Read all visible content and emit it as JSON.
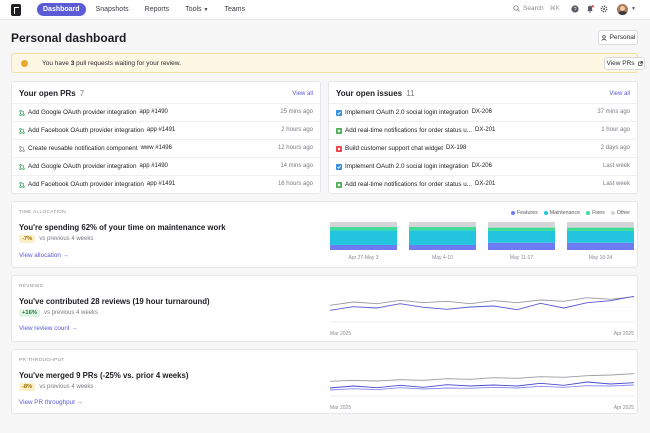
{
  "nav": {
    "tabs": [
      {
        "label": "Dashboard",
        "active": true
      },
      {
        "label": "Snapshots"
      },
      {
        "label": "Reports"
      },
      {
        "label": "Tools",
        "has_menu": true
      },
      {
        "label": "Teams"
      }
    ],
    "search_label": "Search",
    "search_shortcut": "⌘K"
  },
  "page": {
    "title": "Personal dashboard",
    "scope_button": "Personal"
  },
  "banner": {
    "prefix": "You have ",
    "count": "3",
    "suffix": " pull requests waiting for your review.",
    "button": "View PRs"
  },
  "prs": {
    "title": "Your open PRs",
    "count": "7",
    "view_all": "View all",
    "items": [
      {
        "title": "Add Google OAuth provider integration",
        "meta": "app #1490",
        "time": "25 mins ago",
        "status": "open"
      },
      {
        "title": "Add Facebook OAuth provider integration",
        "meta": "app #1491",
        "time": "2 hours ago",
        "status": "open"
      },
      {
        "title": "Create reusable notification component",
        "meta": "www #1496",
        "time": "12 hours ago",
        "status": "draft"
      },
      {
        "title": "Add Google OAuth provider integration",
        "meta": "app #1490",
        "time": "14 mins ago",
        "status": "open"
      },
      {
        "title": "Add Facebook OAuth provider integration",
        "meta": "app #1491",
        "time": "16 hours ago",
        "status": "open"
      }
    ]
  },
  "issues": {
    "title": "Your open issues",
    "count": "11",
    "view_all": "View all",
    "items": [
      {
        "title": "Implement OAuth 2.0 social login integration",
        "meta": "DX-206",
        "time": "37 mins ago",
        "kind": "task"
      },
      {
        "title": "Add real-time notifications for order status u...",
        "meta": "DX-201",
        "time": "1 hour ago",
        "kind": "story"
      },
      {
        "title": "Build customer support chat widget",
        "meta": "DX-198",
        "time": "2 days ago",
        "kind": "bug"
      },
      {
        "title": "Implement OAuth 2.0 social login integration",
        "meta": "DX-206",
        "time": "Last week",
        "kind": "task"
      },
      {
        "title": "Add real-time notifications for order status u...",
        "meta": "DX-201",
        "time": "Last week",
        "kind": "story"
      }
    ]
  },
  "colors": {
    "accent": "#5b5bd6",
    "features": "#6f7bf2",
    "maintenance": "#22c5dd",
    "fixes": "#3ddc97",
    "other": "#d4d4d9",
    "task": "#3b8fe0",
    "story": "#4caf50",
    "bug": "#e5484d",
    "pr_open": "#2f9e57"
  },
  "sections": {
    "allocation": {
      "label": "TIME ALLOCATION",
      "headline": "You're spending 62% of your time on maintenance work",
      "delta": "-7%",
      "delta_text": "vs previous 4 weeks",
      "link": "View allocation →",
      "legend": [
        "Features",
        "Maintenance",
        "Fixes",
        "Other"
      ]
    },
    "reviews": {
      "label": "REVIEWS",
      "headline": "You've contributed 28 reviews (19 hour turnaround)",
      "delta": "+16%",
      "delta_text": "vs previous 4 weeks",
      "link": "View review count →",
      "x_start": "Mar 2025",
      "x_end": "Apr 2025"
    },
    "throughput": {
      "label": "PR THROUGHPUT",
      "headline": "You've merged 9 PRs (-25% vs. prior 4 weeks)",
      "delta": "-8%",
      "delta_text": "vs previous 4 weeks",
      "link": "View PR throughput →",
      "x_start": "Mar 2025",
      "x_end": "Apr 2025"
    }
  },
  "chart_data": [
    {
      "type": "bar",
      "stacked": true,
      "categories": [
        "Apr 27-May 3",
        "May 4-10",
        "May 11-17",
        "May 18-24"
      ],
      "series": [
        {
          "name": "Features",
          "values": [
            0.18,
            0.18,
            0.26,
            0.26
          ]
        },
        {
          "name": "Maintenance",
          "values": [
            0.52,
            0.52,
            0.42,
            0.42
          ]
        },
        {
          "name": "Fixes",
          "values": [
            0.12,
            0.12,
            0.12,
            0.12
          ]
        },
        {
          "name": "Other",
          "values": [
            0.18,
            0.18,
            0.2,
            0.2
          ]
        }
      ],
      "legend_position": "top-right"
    },
    {
      "type": "line",
      "x_labels": [
        "Mar 2025",
        "Apr 2025"
      ],
      "series": [
        {
          "values": [
            5,
            6,
            5.5,
            6.5,
            5.8,
            6.2,
            5.5,
            6.4,
            5.8,
            6.6,
            6.2,
            7.3,
            6.8,
            7.6
          ]
        },
        {
          "values": [
            3.5,
            4.6,
            4.2,
            5.5,
            4.4,
            3.8,
            4.5,
            4.8,
            3.7,
            5.6,
            4.2,
            5.8,
            6.4,
            7.7
          ]
        }
      ],
      "ylim": [
        0,
        9
      ]
    },
    {
      "type": "line",
      "x_labels": [
        "Mar 2025",
        "Apr 2025"
      ],
      "series": [
        {
          "values": [
            4.4,
            4.7,
            4.5,
            4.9,
            4.7,
            5.2,
            5.0,
            5.5,
            5.3,
            5.8,
            5.6,
            6.1,
            6.3,
            6.7
          ]
        },
        {
          "values": [
            2.4,
            3.0,
            2.5,
            3.2,
            2.6,
            3.4,
            3.0,
            3.3,
            3.0,
            3.8,
            3.2,
            4.2,
            3.6,
            4.0
          ]
        },
        {
          "values": [
            1.8,
            2.2,
            1.9,
            2.5,
            2.1,
            2.4,
            2.3,
            2.6,
            2.4,
            2.9,
            2.6,
            3.1,
            3.0,
            3.3
          ]
        }
      ],
      "ylim": [
        0,
        9
      ]
    }
  ]
}
